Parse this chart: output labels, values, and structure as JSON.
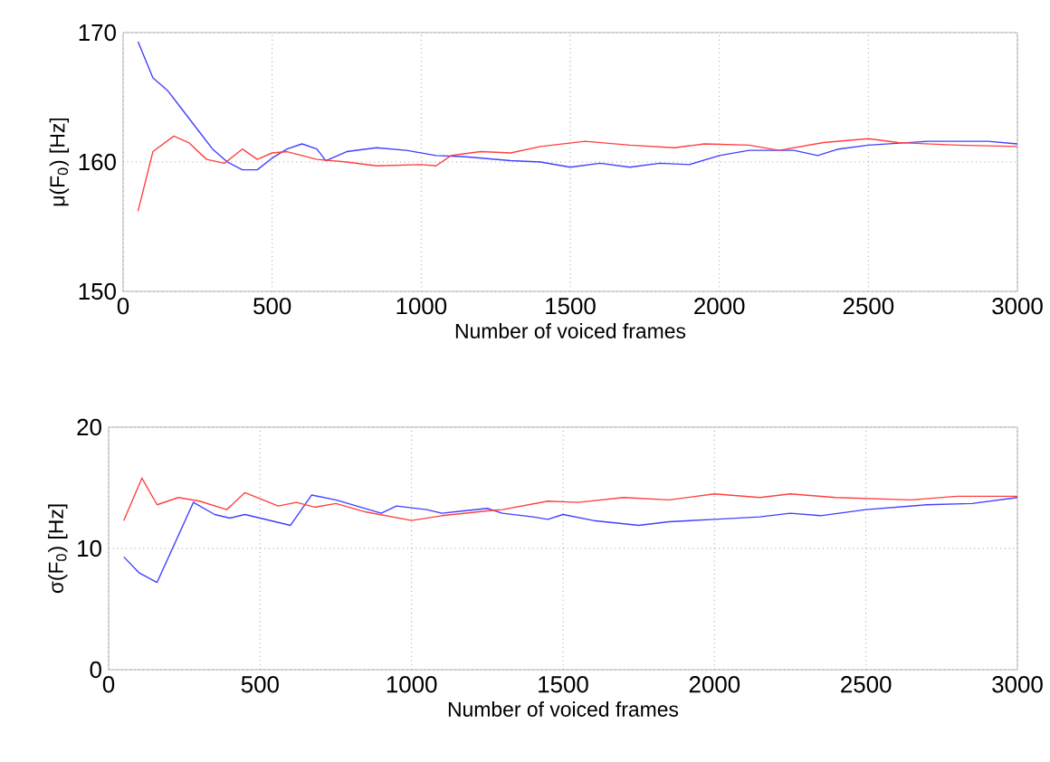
{
  "chart_data": [
    {
      "type": "line",
      "xlabel": "Number of voiced frames",
      "ylabel": "μ(F$_{0}$)  [Hz]",
      "xlim": [
        0,
        3000
      ],
      "ylim": [
        150,
        170
      ],
      "xticks": [
        0,
        500,
        1000,
        1500,
        2000,
        2500,
        3000
      ],
      "yticks": [
        150,
        160,
        170
      ],
      "grid": true,
      "series": [
        {
          "color": "#4040ff",
          "x": [
            50,
            100,
            150,
            200,
            250,
            300,
            350,
            400,
            450,
            500,
            550,
            600,
            650,
            680,
            750,
            850,
            950,
            1050,
            1150,
            1300,
            1400,
            1500,
            1600,
            1700,
            1800,
            1900,
            2000,
            2100,
            2250,
            2330,
            2400,
            2500,
            2700,
            2900,
            3000
          ],
          "values": [
            169.3,
            166.5,
            165.5,
            164,
            162.5,
            161,
            160,
            159.4,
            159.4,
            160.3,
            161,
            161.4,
            161,
            160.1,
            160.8,
            161.1,
            160.9,
            160.5,
            160.4,
            160.1,
            160,
            159.6,
            159.9,
            159.6,
            159.9,
            159.8,
            160.5,
            160.9,
            160.9,
            160.5,
            161,
            161.3,
            161.6,
            161.6,
            161.4
          ]
        },
        {
          "color": "#ff4040",
          "x": [
            50,
            100,
            170,
            220,
            280,
            340,
            400,
            450,
            500,
            550,
            650,
            750,
            850,
            1000,
            1050,
            1100,
            1200,
            1300,
            1400,
            1550,
            1700,
            1850,
            1950,
            2100,
            2200,
            2350,
            2500,
            2600,
            2800,
            3000
          ],
          "values": [
            156.2,
            160.8,
            162,
            161.5,
            160.2,
            159.9,
            161,
            160.2,
            160.7,
            160.8,
            160.2,
            160,
            159.7,
            159.8,
            159.7,
            160.5,
            160.8,
            160.7,
            161.2,
            161.6,
            161.3,
            161.1,
            161.4,
            161.3,
            160.9,
            161.5,
            161.8,
            161.5,
            161.3,
            161.2
          ]
        }
      ]
    },
    {
      "type": "line",
      "xlabel": "Number of voiced frames",
      "ylabel": "σ(F$_{0}$) [Hz]",
      "xlim": [
        0,
        3000
      ],
      "ylim": [
        0,
        20
      ],
      "xticks": [
        0,
        500,
        1000,
        1500,
        2000,
        2500,
        3000
      ],
      "yticks": [
        0,
        10,
        20
      ],
      "grid": true,
      "series": [
        {
          "color": "#4040ff",
          "x": [
            50,
            100,
            160,
            280,
            350,
            400,
            450,
            600,
            670,
            750,
            900,
            950,
            1050,
            1100,
            1250,
            1300,
            1400,
            1450,
            1500,
            1600,
            1750,
            1850,
            2000,
            2150,
            2250,
            2350,
            2500,
            2700,
            2850,
            3000
          ],
          "values": [
            9.3,
            8,
            7.2,
            13.8,
            12.8,
            12.5,
            12.8,
            11.9,
            14.4,
            14,
            12.9,
            13.5,
            13.2,
            12.9,
            13.3,
            12.9,
            12.6,
            12.4,
            12.8,
            12.3,
            11.9,
            12.2,
            12.4,
            12.6,
            12.9,
            12.7,
            13.2,
            13.6,
            13.7,
            14.2
          ]
        },
        {
          "color": "#ff4040",
          "x": [
            50,
            110,
            160,
            230,
            300,
            390,
            450,
            560,
            620,
            680,
            750,
            850,
            1000,
            1100,
            1250,
            1300,
            1450,
            1550,
            1700,
            1850,
            2000,
            2150,
            2250,
            2400,
            2650,
            2800,
            3000
          ],
          "values": [
            12.3,
            15.8,
            13.6,
            14.2,
            13.9,
            13.2,
            14.6,
            13.5,
            13.8,
            13.4,
            13.7,
            13,
            12.3,
            12.7,
            13.1,
            13.2,
            13.9,
            13.8,
            14.2,
            14,
            14.5,
            14.2,
            14.5,
            14.2,
            14,
            14.3,
            14.3
          ]
        }
      ]
    }
  ]
}
